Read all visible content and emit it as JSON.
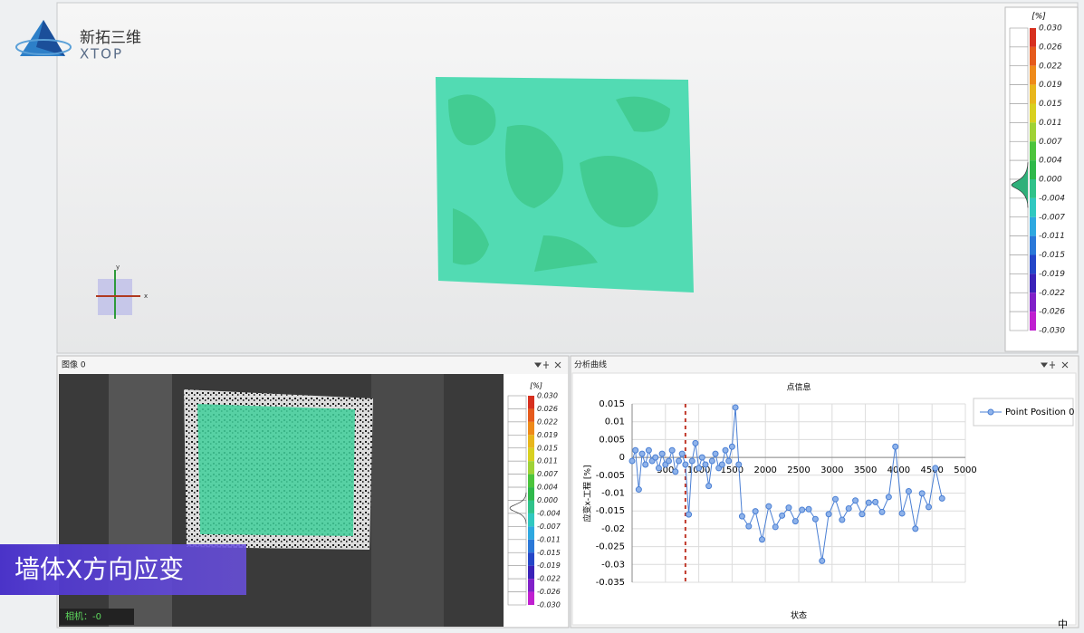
{
  "logo": {
    "name": "新拓三维",
    "brand": "XTOP"
  },
  "viewport": {
    "axis_y": "y",
    "axis_x": "x"
  },
  "colorbar": {
    "unit": "[%]",
    "labels": [
      "0.030",
      "0.026",
      "0.022",
      "0.019",
      "0.015",
      "0.011",
      "0.007",
      "0.004",
      "0.000",
      "-0.004",
      "-0.007",
      "-0.011",
      "-0.015",
      "-0.019",
      "-0.022",
      "-0.026",
      "-0.030"
    ],
    "colors": [
      "#d7301f",
      "#e55a1c",
      "#ee8a1a",
      "#e8b61c",
      "#d8d020",
      "#9fd236",
      "#4cc43c",
      "#2fb84a",
      "#2fc28a",
      "#30c8c0",
      "#2ea8e0",
      "#2a78d8",
      "#2446c8",
      "#3a22b8",
      "#8020c8",
      "#c020d0"
    ]
  },
  "image_panel": {
    "title": "图像 0",
    "camera": "相机：-0",
    "caption": "墙体X方向应变"
  },
  "chart_panel": {
    "title": "分析曲线"
  },
  "ime": "中",
  "chart_data": {
    "type": "line",
    "title": "点信息",
    "x_label": "状态",
    "y_label": "应变x-工程 [%]",
    "x": [
      0,
      50,
      100,
      150,
      200,
      250,
      300,
      350,
      400,
      450,
      500,
      550,
      600,
      650,
      700,
      750,
      800,
      850,
      900,
      950,
      1000,
      1050,
      1100,
      1150,
      1200,
      1250,
      1300,
      1350,
      1400,
      1450,
      1500,
      1550,
      1600,
      1650,
      1750,
      1850,
      1950,
      2050,
      2150,
      2250,
      2350,
      2450,
      2550,
      2650,
      2750,
      2850,
      2950,
      3050,
      3150,
      3250,
      3350,
      3450,
      3550,
      3650,
      3750,
      3850,
      3950,
      4050,
      4150,
      4250,
      4350,
      4450,
      4550,
      4650
    ],
    "series": [
      {
        "name": "Point Position 0",
        "color": "#4a7fd4",
        "values": [
          -0.001,
          0.002,
          -0.009,
          0.001,
          -0.002,
          0.002,
          -0.001,
          0,
          -0.003,
          0.001,
          -0.002,
          -0.001,
          0.002,
          -0.004,
          -0.001,
          0.001,
          -0.002,
          -0.016,
          -0.001,
          0.004,
          -0.003,
          0,
          -0.002,
          -0.008,
          -0.001,
          0.001,
          -0.003,
          -0.002,
          0.002,
          -0.001,
          0.003,
          0.014,
          -0.002,
          -0.0165,
          -0.0193,
          -0.0151,
          -0.023,
          -0.0137,
          -0.0195,
          -0.0163,
          -0.0141,
          -0.0179,
          -0.0147,
          -0.0145,
          -0.0173,
          -0.029,
          -0.0159,
          -0.0117,
          -0.0175,
          -0.0143,
          -0.0121,
          -0.0159,
          -0.0127,
          -0.0125,
          -0.0153,
          -0.0111,
          0.003,
          -0.0157,
          -0.0095,
          -0.02,
          -0.0101,
          -0.0139,
          -0.003,
          -0.0115
        ]
      }
    ],
    "xlim": [
      0,
      5000
    ],
    "xticks": [
      500,
      1000,
      1500,
      2000,
      2500,
      3000,
      3500,
      4000,
      4500,
      5000
    ],
    "ylim": [
      -0.035,
      0.015
    ],
    "yticks": [
      0.015,
      0.01,
      0.005,
      0,
      -0.005,
      -0.01,
      -0.015,
      -0.02,
      -0.025,
      -0.03,
      -0.035
    ],
    "grid": true,
    "current_x": 800,
    "current_color": "#c0392b",
    "legend": "upper right"
  }
}
